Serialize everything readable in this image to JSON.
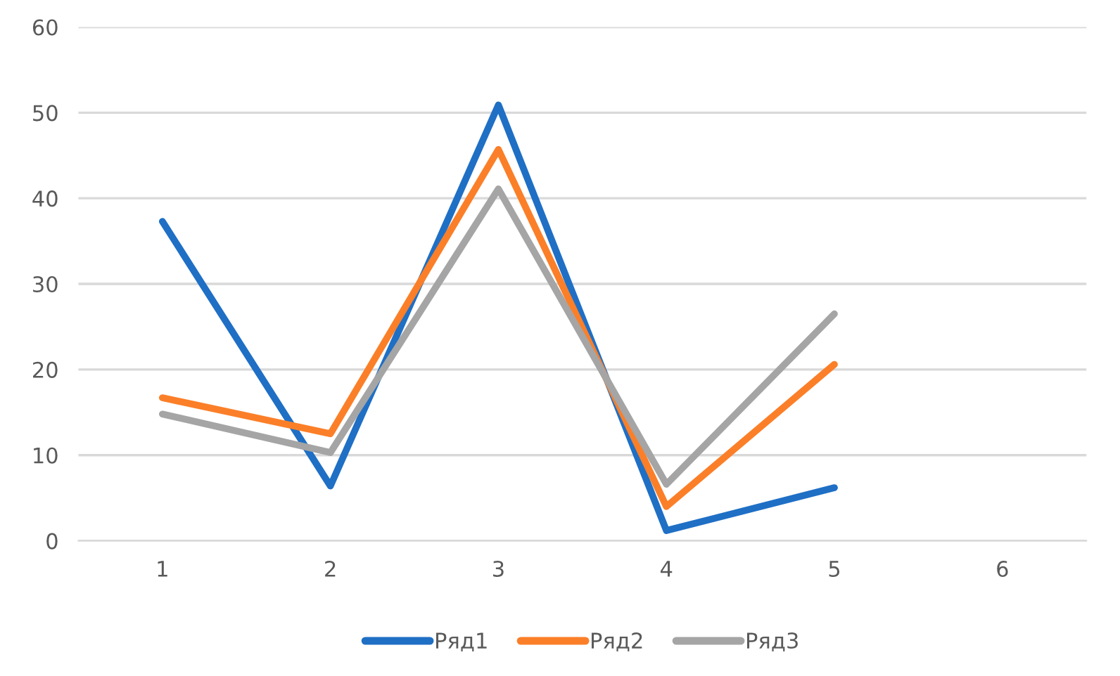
{
  "chart_data": {
    "type": "line",
    "categories": [
      "1",
      "2",
      "3",
      "4",
      "5",
      "6"
    ],
    "series": [
      {
        "name": "Ряд1",
        "color": "#1f6fc5",
        "values": [
          37.3,
          6.4,
          50.9,
          1.2,
          6.2,
          null
        ]
      },
      {
        "name": "Ряд2",
        "color": "#fb7f28",
        "values": [
          16.7,
          12.5,
          45.7,
          4.0,
          20.6,
          null
        ]
      },
      {
        "name": "Ряд3",
        "color": "#a5a5a5",
        "values": [
          14.8,
          10.3,
          41.1,
          6.6,
          26.5,
          null
        ]
      }
    ],
    "ylim": [
      0,
      60
    ],
    "yticks": [
      0,
      10,
      20,
      30,
      40,
      50,
      60
    ],
    "grid": "y",
    "legend": "bottom",
    "line_style": "solid",
    "marker": "none"
  }
}
